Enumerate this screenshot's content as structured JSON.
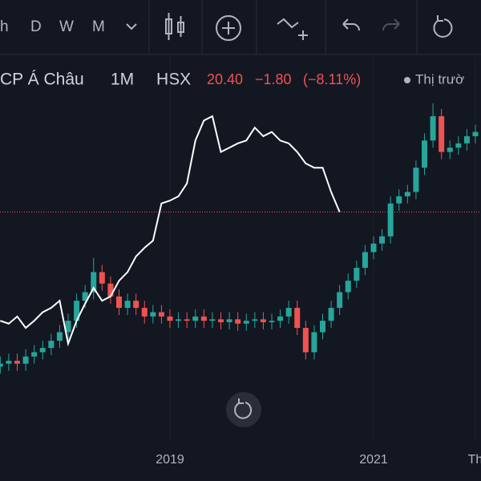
{
  "toolbar": {
    "intervals": [
      "h",
      "D",
      "W",
      "M"
    ],
    "active_interval": 3
  },
  "header": {
    "symbol": "CP Á Châu",
    "interval": "1M",
    "exchange": "HSX",
    "last": "20.40",
    "change": "−1.80",
    "change_pct": "(−8.11%)",
    "market": "Thị trườ"
  },
  "chart_data": {
    "type": "candlestick",
    "categories": [
      null,
      null,
      null,
      null,
      null,
      null,
      null,
      null,
      null,
      null,
      null,
      null,
      null,
      null,
      null,
      null,
      null,
      null,
      null,
      null,
      "2019",
      null,
      null,
      null,
      null,
      null,
      null,
      null,
      null,
      null,
      null,
      null,
      null,
      null,
      null,
      null,
      null,
      null,
      null,
      null,
      null,
      null,
      null,
      null,
      "2021",
      null,
      null,
      null,
      null,
      null,
      null,
      null,
      null,
      null,
      null,
      null,
      "Th"
    ],
    "open": [
      9.6,
      9.8,
      10.0,
      9.8,
      10.3,
      10.6,
      10.9,
      11.4,
      12.0,
      12.8,
      14.2,
      14.8,
      16.2,
      15.4,
      14.5,
      13.7,
      14.2,
      13.7,
      13.1,
      13.4,
      13.1,
      12.8,
      12.9,
      12.8,
      13.1,
      12.8,
      12.9,
      12.7,
      12.9,
      12.6,
      12.8,
      12.9,
      12.7,
      12.8,
      13.1,
      13.7,
      12.3,
      10.6,
      12.0,
      12.8,
      13.7,
      14.8,
      15.6,
      16.5,
      17.6,
      18.2,
      18.7,
      21.0,
      21.5,
      21.8,
      23.5,
      25.4,
      27.1,
      24.6,
      24.9,
      25.2,
      25.7
    ],
    "high": [
      10.3,
      10.5,
      10.5,
      10.8,
      11.1,
      11.4,
      11.9,
      12.5,
      13.3,
      14.7,
      15.3,
      17.2,
      16.7,
      15.9,
      15.0,
      14.7,
      14.7,
      14.2,
      13.9,
      13.9,
      13.6,
      13.4,
      13.4,
      13.6,
      13.6,
      13.4,
      13.4,
      13.4,
      13.4,
      13.3,
      13.4,
      13.4,
      13.3,
      13.6,
      14.2,
      14.2,
      12.8,
      12.5,
      13.3,
      14.2,
      15.3,
      16.1,
      17.0,
      18.1,
      18.7,
      19.2,
      21.5,
      22.0,
      22.3,
      24.0,
      25.9,
      28.0,
      27.6,
      25.4,
      25.7,
      26.2,
      26.5
    ],
    "low": [
      9.1,
      9.3,
      9.3,
      9.3,
      9.8,
      10.1,
      10.4,
      10.9,
      11.5,
      12.3,
      13.7,
      14.3,
      14.9,
      14.0,
      13.2,
      13.2,
      13.2,
      12.6,
      12.6,
      12.6,
      12.3,
      12.3,
      12.3,
      12.3,
      12.3,
      12.3,
      12.2,
      12.2,
      12.1,
      12.1,
      12.3,
      12.2,
      12.2,
      12.3,
      12.6,
      11.8,
      10.1,
      10.1,
      11.5,
      12.3,
      13.2,
      14.3,
      15.1,
      16.0,
      17.1,
      17.7,
      18.2,
      20.5,
      21.0,
      21.3,
      23.0,
      24.9,
      24.1,
      24.1,
      24.4,
      24.7,
      25.2
    ],
    "close": [
      9.8,
      10.0,
      9.8,
      10.3,
      10.6,
      10.9,
      11.4,
      12.0,
      12.8,
      14.2,
      14.8,
      16.2,
      15.4,
      14.5,
      13.7,
      14.2,
      13.7,
      13.1,
      13.4,
      13.1,
      12.8,
      12.9,
      12.8,
      13.1,
      12.8,
      12.9,
      12.7,
      12.9,
      12.6,
      12.8,
      12.9,
      12.7,
      12.8,
      13.1,
      13.7,
      12.3,
      10.6,
      12.0,
      12.8,
      13.7,
      14.8,
      15.6,
      16.5,
      17.6,
      18.2,
      18.7,
      21.0,
      21.5,
      21.8,
      23.5,
      25.4,
      27.1,
      24.6,
      24.9,
      25.2,
      25.7,
      26.0
    ],
    "up_color": "#26a69a",
    "down_color": "#ef5350",
    "compare_line": {
      "color": "#ffffff",
      "values": [
        12.8,
        12.6,
        13.1,
        12.3,
        12.8,
        13.4,
        13.7,
        14.2,
        11.2,
        12.8,
        14.0,
        15.1,
        14.2,
        14.5,
        15.6,
        16.2,
        17.3,
        17.9,
        18.4,
        21.0,
        21.2,
        21.5,
        22.4,
        25.4,
        26.8,
        27.1,
        24.6,
        24.9,
        25.2,
        25.4,
        26.3,
        25.7,
        26.0,
        25.4,
        25.2,
        24.6,
        23.8,
        23.5,
        23.5,
        21.8,
        20.4
      ]
    },
    "price_line": 20.4,
    "ylim": [
      1.6,
      31.3
    ]
  }
}
